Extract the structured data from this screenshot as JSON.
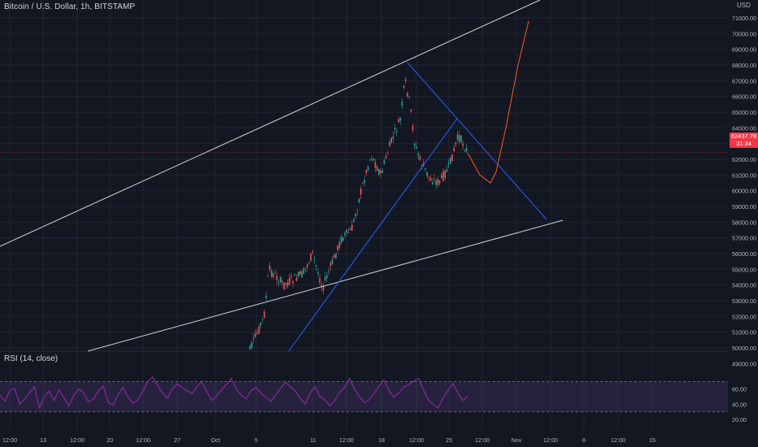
{
  "header": {
    "symbol_title": "Bitcoin / U.S. Dollar, 1h, BITSTAMP",
    "currency": "USD"
  },
  "rsi": {
    "title": "RSI (14, close)",
    "levels": [
      70,
      30
    ],
    "ticks": [
      "60.00",
      "40.00",
      "20.00"
    ],
    "color": "#9c27b0"
  },
  "price_badge": {
    "price": "62437.78",
    "countdown": "31:34",
    "color": "#f23645"
  },
  "colors": {
    "background": "#131722",
    "grid": "#1f2431",
    "up": "#26a69a",
    "down": "#ef5350",
    "trendline_blue": "#2962ff",
    "channel_line": "#d1d4dc",
    "projection": "#ff5722"
  },
  "chart_data": {
    "type": "line",
    "title": "Bitcoin / U.S. Dollar, 1h, BITSTAMP",
    "price_axis_ticks": [
      "71000.00",
      "70000.00",
      "69000.00",
      "68000.00",
      "67000.00",
      "66000.00",
      "65000.00",
      "64000.00",
      "63000.00",
      "62000.00",
      "61000.00",
      "60000.00",
      "59000.00",
      "58000.00",
      "57000.00",
      "56000.00",
      "55000.00",
      "54000.00",
      "53000.00",
      "52000.00",
      "51000.00",
      "50000.00",
      "49000.00"
    ],
    "time_axis_ticks": [
      "12:00",
      "13",
      "12:00",
      "20",
      "12:00",
      "27",
      "Oct",
      "5",
      "11",
      "12:00",
      "18",
      "12:00",
      "25",
      "12:00",
      "Nov",
      "12:00",
      "8",
      "12:00",
      "15"
    ],
    "ylim": [
      48800,
      71200
    ],
    "current_price": 62437.78,
    "price_path": [
      {
        "t": "Oct 4",
        "price": 49000
      },
      {
        "t": "Oct 5",
        "price": 50500
      },
      {
        "t": "Oct 6",
        "price": 52000
      },
      {
        "t": "Oct 6 12:00",
        "price": 55000
      },
      {
        "t": "Oct 8",
        "price": 54000
      },
      {
        "t": "Oct 10",
        "price": 54700
      },
      {
        "t": "Oct 11",
        "price": 56000
      },
      {
        "t": "Oct 12",
        "price": 53800
      },
      {
        "t": "Oct 14",
        "price": 57000
      },
      {
        "t": "Oct 15",
        "price": 57500
      },
      {
        "t": "Oct 16",
        "price": 60000
      },
      {
        "t": "Oct 17",
        "price": 62300
      },
      {
        "t": "Oct 18",
        "price": 61000
      },
      {
        "t": "Oct 19",
        "price": 63000
      },
      {
        "t": "Oct 20",
        "price": 64500
      },
      {
        "t": "Oct 20 12:00",
        "price": 67000
      },
      {
        "t": "Oct 21",
        "price": 65500
      },
      {
        "t": "Oct 21 12:00",
        "price": 63000
      },
      {
        "t": "Oct 22",
        "price": 62000
      },
      {
        "t": "Oct 23",
        "price": 60800
      },
      {
        "t": "Oct 24",
        "price": 60500
      },
      {
        "t": "Oct 25",
        "price": 61500
      },
      {
        "t": "Oct 26",
        "price": 63500
      },
      {
        "t": "Oct 27",
        "price": 62400
      }
    ],
    "projection": [
      {
        "t": "Oct 27",
        "price": 62400
      },
      {
        "t": "Oct 28",
        "price": 61000
      },
      {
        "t": "Oct 29",
        "price": 60500
      },
      {
        "t": "Oct 30",
        "price": 61200
      },
      {
        "t": "Oct 31",
        "price": 64000
      },
      {
        "t": "Nov 1",
        "price": 68000
      },
      {
        "t": "Nov 2",
        "price": 70800
      }
    ],
    "rsi_values": [
      52,
      44,
      58,
      61,
      40,
      47,
      55,
      63,
      35,
      50,
      57,
      45,
      59,
      48,
      38,
      52,
      60,
      55,
      43,
      47,
      58,
      64,
      42,
      39,
      53,
      62,
      50,
      41,
      46,
      57,
      70,
      76,
      65,
      55,
      48,
      60,
      67,
      62,
      58,
      54,
      63,
      70,
      57,
      45,
      51,
      59,
      66,
      74,
      60,
      52,
      47,
      58,
      62,
      55,
      49,
      44,
      52,
      61,
      69,
      63,
      57,
      48,
      40,
      55,
      63,
      50,
      46,
      38,
      45,
      56,
      62,
      74,
      60,
      50,
      42,
      46,
      54,
      64,
      72,
      58,
      49,
      55,
      62,
      66,
      70,
      74,
      59,
      46,
      40,
      35,
      48,
      58,
      67,
      55,
      45,
      50
    ]
  }
}
